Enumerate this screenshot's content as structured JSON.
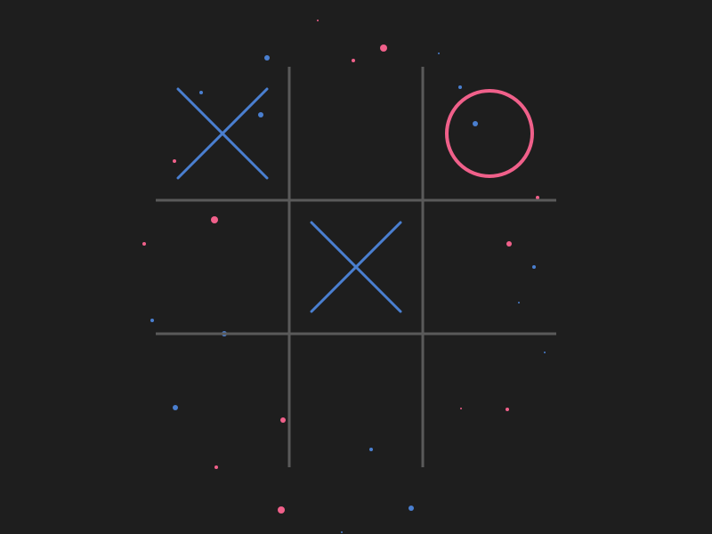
{
  "game": {
    "board": [
      [
        "X",
        "",
        "O"
      ],
      [
        "",
        "X",
        ""
      ],
      [
        "",
        "",
        ""
      ]
    ]
  },
  "colors": {
    "background": "#1e1e1e",
    "grid": "#5a5a5a",
    "x_mark": "#4a7fd0",
    "o_mark": "#f0608a"
  }
}
